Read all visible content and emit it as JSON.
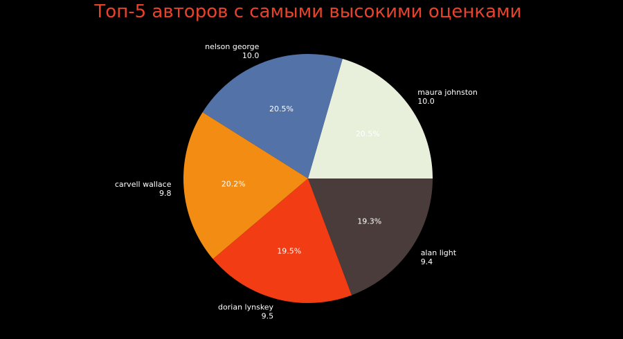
{
  "chart_data": {
    "type": "pie",
    "title": "Топ-5 авторов с самыми высокими оценками",
    "slices": [
      {
        "name": "maura johnston",
        "value": 10.0,
        "value_label": "10.0",
        "percent_label": "20.5%",
        "color": "#e8f0dc"
      },
      {
        "name": "nelson george",
        "value": 10.0,
        "value_label": "10.0",
        "percent_label": "20.5%",
        "color": "#5272a8"
      },
      {
        "name": "carvell wallace",
        "value": 9.8,
        "value_label": "9.8",
        "percent_label": "20.2%",
        "color": "#f28c12"
      },
      {
        "name": "dorian lynskey",
        "value": 9.5,
        "value_label": "9.5",
        "percent_label": "19.5%",
        "color": "#f23c14"
      },
      {
        "name": "alan light",
        "value": 9.4,
        "value_label": "9.4",
        "percent_label": "19.3%",
        "color": "#4a3c3b"
      }
    ],
    "start_angle": "0 degrees (3 o'clock), counter-clockwise",
    "colors": {
      "background": "#000000",
      "title": "#e8432a",
      "labels": "#ffffff"
    }
  }
}
